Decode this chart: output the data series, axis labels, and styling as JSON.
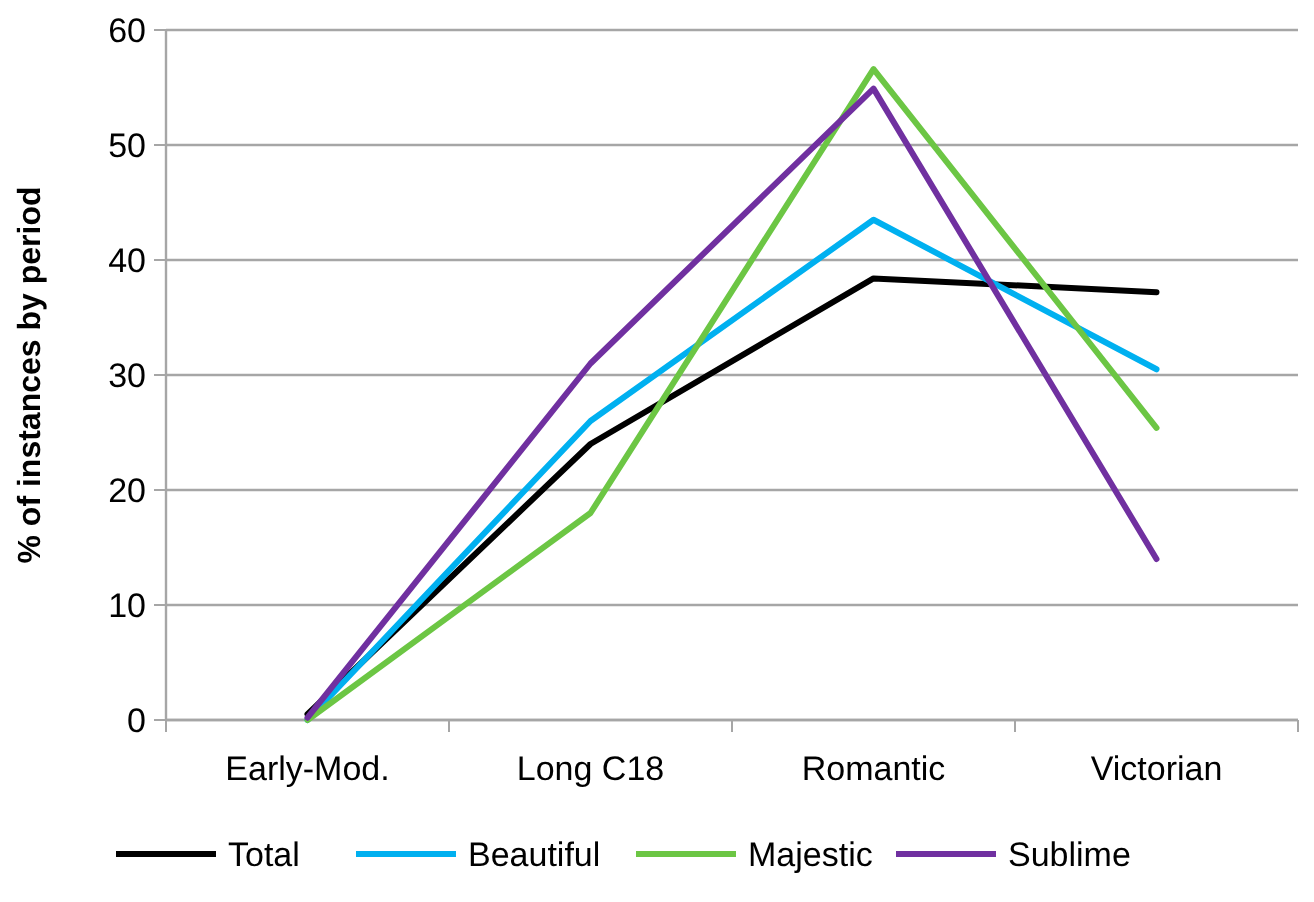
{
  "chart_data": {
    "type": "line",
    "ylabel": "% of instances by period",
    "categories": [
      "Early-Mod.",
      "Long C18",
      "Romantic",
      "Victorian"
    ],
    "series": [
      {
        "name": "Total",
        "color": "#000000",
        "values": [
          0.5,
          24,
          38.4,
          37.2
        ]
      },
      {
        "name": "Beautiful",
        "color": "#00b0f0",
        "values": [
          0,
          26,
          43.5,
          30.5
        ]
      },
      {
        "name": "Majestic",
        "color": "#6cc644",
        "values": [
          0,
          18,
          56.6,
          25.4
        ]
      },
      {
        "name": "Sublime",
        "color": "#7030a0",
        "values": [
          0.2,
          31,
          54.9,
          14
        ]
      }
    ],
    "ylim": [
      0,
      60
    ],
    "yticks": [
      0,
      10,
      20,
      30,
      40,
      50,
      60
    ],
    "grid": "y",
    "legend": "bottom",
    "marker": "none",
    "line_style": "solid"
  }
}
